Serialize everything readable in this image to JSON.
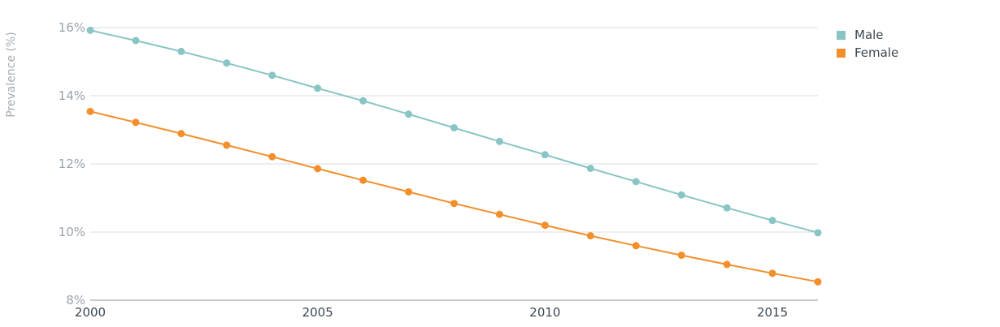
{
  "chart_data": {
    "type": "line",
    "title": "",
    "xlabel": "",
    "ylabel": "Prevalence (%)",
    "x": [
      2000,
      2001,
      2002,
      2003,
      2004,
      2005,
      2006,
      2007,
      2008,
      2009,
      2010,
      2011,
      2012,
      2013,
      2014,
      2015,
      2016
    ],
    "xlim": [
      2000,
      2016
    ],
    "ylim": [
      8,
      16
    ],
    "x_ticks": [
      2000,
      2005,
      2010,
      2015
    ],
    "x_tick_labels": [
      "2000",
      "2005",
      "2010",
      "2015"
    ],
    "y_ticks": [
      8,
      10,
      12,
      14,
      16
    ],
    "y_tick_labels": [
      "8%",
      "10%",
      "12%",
      "14%",
      "16%"
    ],
    "grid": "horizontal",
    "legend_position": "top-right",
    "series": [
      {
        "name": "Male",
        "color": "#88c5c4",
        "values": [
          15.92,
          15.62,
          15.3,
          14.96,
          14.6,
          14.22,
          13.85,
          13.46,
          13.06,
          12.66,
          12.27,
          11.87,
          11.48,
          11.09,
          10.71,
          10.34,
          9.98
        ]
      },
      {
        "name": "Female",
        "color": "#f28f2c",
        "values": [
          13.54,
          13.22,
          12.89,
          12.55,
          12.21,
          11.86,
          11.52,
          11.18,
          10.84,
          10.52,
          10.2,
          9.89,
          9.6,
          9.32,
          9.05,
          8.79,
          8.54
        ]
      }
    ]
  }
}
